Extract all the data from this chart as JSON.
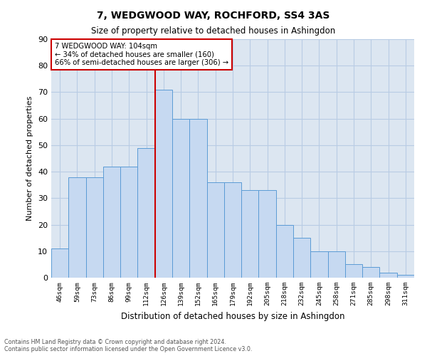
{
  "title": "7, WEDGWOOD WAY, ROCHFORD, SS4 3AS",
  "subtitle": "Size of property relative to detached houses in Ashingdon",
  "xlabel": "Distribution of detached houses by size in Ashingdon",
  "ylabel": "Number of detached properties",
  "bar_values": [
    11,
    38,
    38,
    42,
    42,
    49,
    71,
    60,
    60,
    36,
    36,
    33,
    33,
    20,
    15,
    10,
    10,
    5,
    4,
    2,
    1
  ],
  "bar_labels": [
    "46sqm",
    "59sqm",
    "73sqm",
    "86sqm",
    "99sqm",
    "112sqm",
    "126sqm",
    "139sqm",
    "152sqm",
    "165sqm",
    "179sqm",
    "192sqm",
    "205sqm",
    "218sqm",
    "232sqm",
    "245sqm",
    "258sqm",
    "271sqm",
    "285sqm",
    "298sqm",
    "311sqm"
  ],
  "bar_color": "#c6d9f1",
  "bar_edge_color": "#5b9bd5",
  "annotation_text_line1": "7 WEDGWOOD WAY: 104sqm",
  "annotation_text_line2": "← 34% of detached houses are smaller (160)",
  "annotation_text_line3": "66% of semi-detached houses are larger (306) →",
  "annotation_box_color": "#ffffff",
  "annotation_box_edge_color": "#cc0000",
  "vline_color": "#cc0000",
  "vline_x_index": 6,
  "ylim": [
    0,
    90
  ],
  "yticks": [
    0,
    10,
    20,
    30,
    40,
    50,
    60,
    70,
    80,
    90
  ],
  "grid_color": "#b8cce4",
  "background_color": "#dce6f1",
  "footer_line1": "Contains HM Land Registry data © Crown copyright and database right 2024.",
  "footer_line2": "Contains public sector information licensed under the Open Government Licence v3.0."
}
